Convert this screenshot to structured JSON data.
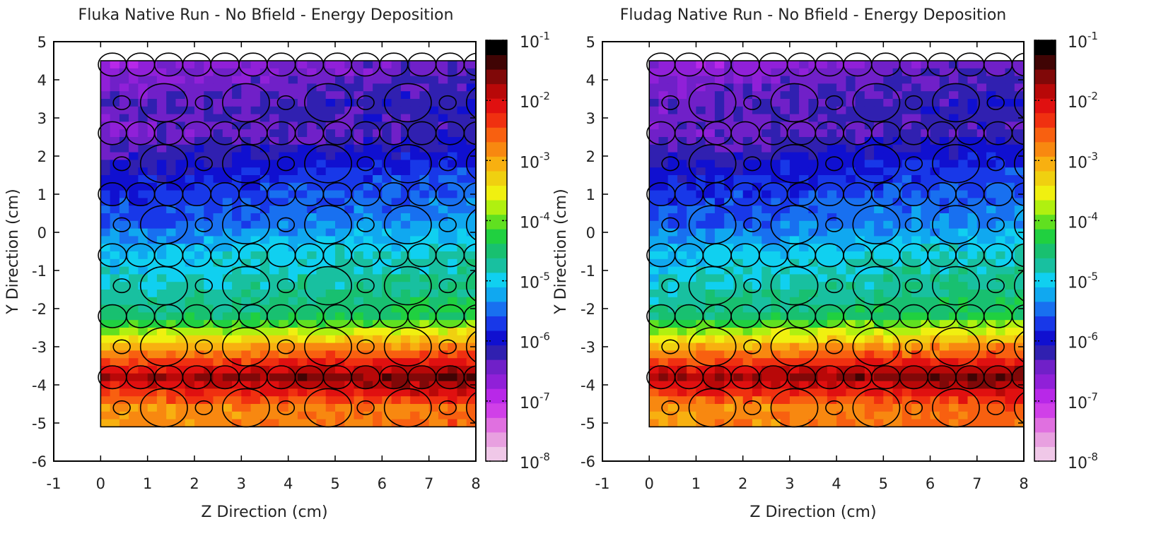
{
  "chart_data": [
    {
      "type": "heatmap",
      "title": "Fluka Native Run - No Bfield - Energy Deposition",
      "xlabel": "Z Direction (cm)",
      "ylabel": "Y Direction (cm)",
      "xlim": [
        -1,
        8
      ],
      "ylim": [
        -6,
        5
      ],
      "x_ticks": [
        "-1",
        "0",
        "1",
        "2",
        "3",
        "4",
        "5",
        "6",
        "7",
        "8"
      ],
      "y_ticks": [
        "-6",
        "-5",
        "-4",
        "-3",
        "-2",
        "-1",
        "0",
        "1",
        "2",
        "3",
        "4",
        "5"
      ],
      "data_region": {
        "z": [
          0,
          8
        ],
        "y": [
          -5.1,
          4.5
        ]
      },
      "colorbar": {
        "scale": "log",
        "range": [
          1e-08,
          0.1
        ],
        "tick_exponents": [
          "-8",
          "-7",
          "-6",
          "-5",
          "-4",
          "-3",
          "-2",
          "-1"
        ]
      },
      "row_dose_y": [
        4.4,
        3.4,
        2.6,
        1.8,
        1.0,
        0.2,
        -0.6,
        -1.4,
        -2.2,
        -3.0,
        -3.8,
        -4.6
      ],
      "row_dose_log10": [
        -6.7,
        -6.4,
        -6.5,
        -6.1,
        -5.8,
        -5.6,
        -5.1,
        -4.9,
        -4.6,
        -3.1,
        -1.8,
        -2.9
      ],
      "dose_gradient_log10_per_cm": 0.04
    },
    {
      "type": "heatmap",
      "title": "Fludag Native Run - No Bfield - Energy Deposition",
      "xlabel": "Z Direction (cm)",
      "ylabel": "Y Direction (cm)",
      "xlim": [
        -1,
        8
      ],
      "ylim": [
        -6,
        5
      ],
      "x_ticks": [
        "-1",
        "0",
        "1",
        "2",
        "3",
        "4",
        "5",
        "6",
        "7",
        "8"
      ],
      "y_ticks": [
        "-6",
        "-5",
        "-4",
        "-3",
        "-2",
        "-1",
        "0",
        "1",
        "2",
        "3",
        "4",
        "5"
      ],
      "data_region": {
        "z": [
          0,
          8
        ],
        "y": [
          -5.1,
          4.5
        ]
      },
      "colorbar": {
        "scale": "log",
        "range": [
          1e-08,
          0.1
        ],
        "tick_exponents": [
          "-8",
          "-7",
          "-6",
          "-5",
          "-4",
          "-3",
          "-2",
          "-1"
        ]
      },
      "row_dose_y": [
        4.4,
        3.4,
        2.6,
        1.8,
        1.0,
        0.2,
        -0.6,
        -1.4,
        -2.2,
        -3.0,
        -3.8,
        -4.6
      ],
      "row_dose_log10": [
        -6.7,
        -6.4,
        -6.5,
        -6.1,
        -5.8,
        -5.6,
        -5.1,
        -4.9,
        -4.6,
        -3.1,
        -1.8,
        -2.9
      ],
      "dose_gradient_log10_per_cm": 0.04
    }
  ],
  "geometry": {
    "big_circle_centers_z": [
      1.35,
      3.1,
      4.85,
      6.55,
      8.3
    ],
    "small_circle_centers_z": [
      0.45,
      2.2,
      3.95,
      5.65,
      7.4
    ],
    "small_rows_y": [
      3.4,
      1.8,
      0.2,
      -1.4,
      -3.0,
      -4.6
    ],
    "big_radius_cm": 0.5,
    "small_radius_cm": 0.18,
    "band_rows_y": [
      4.4,
      2.6,
      1.0,
      -0.6,
      -2.2,
      -3.8
    ],
    "band_centers_z": [
      0.25,
      0.85,
      1.45,
      2.05,
      2.65,
      3.25,
      3.85,
      4.45,
      5.05,
      5.65,
      6.25,
      6.85,
      7.45,
      8.05
    ],
    "band_radius_z_cm": 0.3,
    "band_radius_y_cm": 0.3
  },
  "colors": {
    "palette": [
      "#f0c8e8",
      "#e8a0e0",
      "#e070e0",
      "#d040e8",
      "#b828e8",
      "#9020d8",
      "#7020c8",
      "#3020b0",
      "#1010d0",
      "#1838e8",
      "#1870f0",
      "#10a8f0",
      "#10d0f0",
      "#18c0a0",
      "#18c070",
      "#20d040",
      "#60e020",
      "#b0f010",
      "#f0f010",
      "#f0d010",
      "#f8b010",
      "#f88810",
      "#f86010",
      "#f03010",
      "#e01010",
      "#b80808",
      "#800808",
      "#400404",
      "#000000"
    ]
  }
}
